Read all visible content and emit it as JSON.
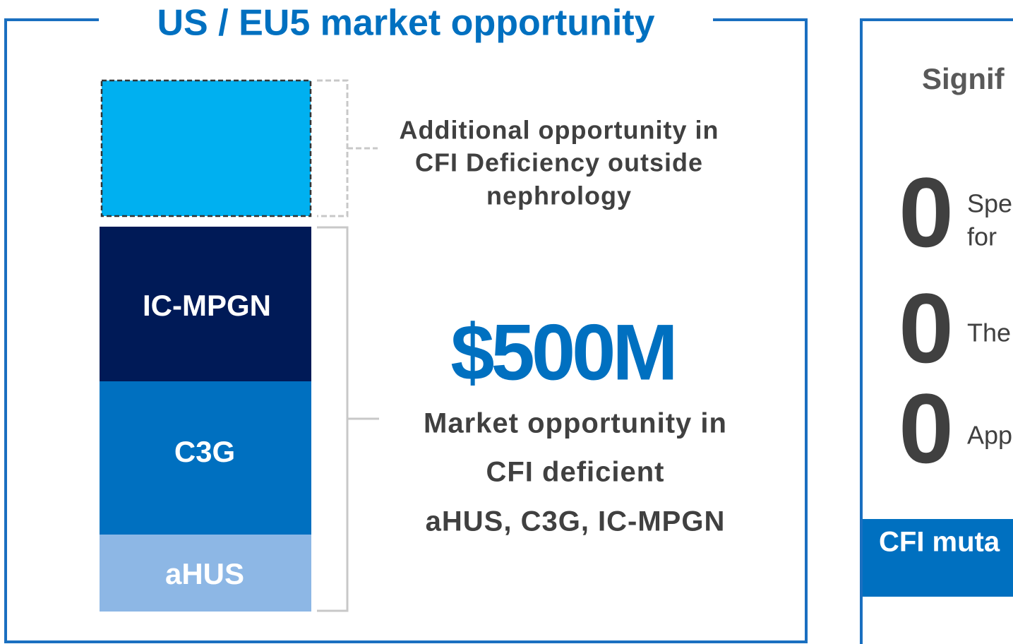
{
  "left_panel": {
    "title": "US / EU5 market opportunity",
    "stack": [
      "IC-MPGN",
      "C3G",
      "aHUS"
    ],
    "additional_note": [
      "Additional opportunity in",
      "CFI Deficiency outside",
      "nephrology"
    ],
    "headline": "$500M",
    "headline_note": [
      "Market opportunity in",
      "CFI deficient",
      "aHUS, C3G, IC-MPGN"
    ]
  },
  "right_panel": {
    "title": "Signif",
    "items": [
      {
        "number": "0",
        "lines": [
          "Spe",
          "for"
        ]
      },
      {
        "number": "0",
        "lines": [
          "The"
        ]
      },
      {
        "number": "0",
        "lines": [
          "App"
        ]
      }
    ],
    "banner": "CFI muta"
  }
}
